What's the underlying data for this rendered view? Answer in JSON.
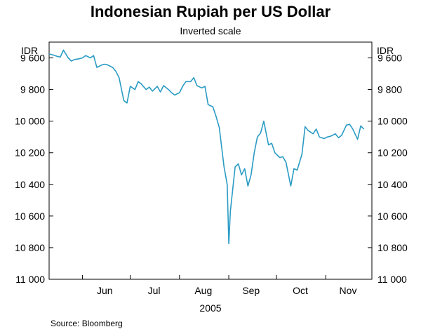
{
  "chart_data": {
    "type": "line",
    "title": "Indonesian Rupiah per US Dollar",
    "subtitle": "Inverted scale",
    "ylabel_left": "IDR",
    "ylabel_right": "IDR",
    "y_inverted": true,
    "ylim": [
      9500,
      11000
    ],
    "y_ticks": [
      9600,
      9800,
      10000,
      10200,
      10400,
      10600,
      10800,
      11000
    ],
    "y_tick_labels": [
      "9 600",
      "9 800",
      "10 000",
      "10 200",
      "10 400",
      "10 600",
      "10 800",
      "11 000"
    ],
    "x_axis_range": [
      "2005-05-11",
      "2005-11-30"
    ],
    "x_month_labels": [
      "Jun",
      "Jul",
      "Aug",
      "Sep",
      "Oct",
      "Nov"
    ],
    "x_year_label": "2005",
    "grid": false,
    "source": "Source: Bloomberg",
    "series": [
      {
        "color": "#2a9bc4",
        "points": [
          [
            "2005-05-11",
            9575
          ],
          [
            "2005-05-13",
            9580
          ],
          [
            "2005-05-16",
            9590
          ],
          [
            "2005-05-18",
            9595
          ],
          [
            "2005-05-20",
            9550
          ],
          [
            "2005-05-23",
            9600
          ],
          [
            "2005-05-25",
            9620
          ],
          [
            "2005-05-27",
            9610
          ],
          [
            "2005-05-30",
            9605
          ],
          [
            "2005-06-01",
            9600
          ],
          [
            "2005-06-03",
            9585
          ],
          [
            "2005-06-06",
            9600
          ],
          [
            "2005-06-08",
            9585
          ],
          [
            "2005-06-10",
            9660
          ],
          [
            "2005-06-13",
            9645
          ],
          [
            "2005-06-15",
            9640
          ],
          [
            "2005-06-17",
            9645
          ],
          [
            "2005-06-20",
            9660
          ],
          [
            "2005-06-22",
            9685
          ],
          [
            "2005-06-24",
            9725
          ],
          [
            "2005-06-27",
            9870
          ],
          [
            "2005-06-29",
            9885
          ],
          [
            "2005-07-01",
            9780
          ],
          [
            "2005-07-04",
            9800
          ],
          [
            "2005-07-06",
            9750
          ],
          [
            "2005-07-08",
            9765
          ],
          [
            "2005-07-11",
            9800
          ],
          [
            "2005-07-13",
            9785
          ],
          [
            "2005-07-15",
            9810
          ],
          [
            "2005-07-18",
            9780
          ],
          [
            "2005-07-20",
            9815
          ],
          [
            "2005-07-22",
            9775
          ],
          [
            "2005-07-25",
            9800
          ],
          [
            "2005-07-27",
            9820
          ],
          [
            "2005-07-29",
            9835
          ],
          [
            "2005-08-01",
            9820
          ],
          [
            "2005-08-03",
            9780
          ],
          [
            "2005-08-05",
            9750
          ],
          [
            "2005-08-08",
            9750
          ],
          [
            "2005-08-10",
            9725
          ],
          [
            "2005-08-12",
            9775
          ],
          [
            "2005-08-15",
            9790
          ],
          [
            "2005-08-17",
            9780
          ],
          [
            "2005-08-19",
            9895
          ],
          [
            "2005-08-22",
            9910
          ],
          [
            "2005-08-24",
            9970
          ],
          [
            "2005-08-26",
            10040
          ],
          [
            "2005-08-29",
            10290
          ],
          [
            "2005-08-31",
            10400
          ],
          [
            "2005-09-01",
            10775
          ],
          [
            "2005-09-02",
            10570
          ],
          [
            "2005-09-05",
            10290
          ],
          [
            "2005-09-07",
            10270
          ],
          [
            "2005-09-09",
            10340
          ],
          [
            "2005-09-11",
            10300
          ],
          [
            "2005-09-13",
            10410
          ],
          [
            "2005-09-15",
            10340
          ],
          [
            "2005-09-17",
            10200
          ],
          [
            "2005-09-19",
            10100
          ],
          [
            "2005-09-21",
            10075
          ],
          [
            "2005-09-23",
            10000
          ],
          [
            "2005-09-26",
            10150
          ],
          [
            "2005-09-28",
            10140
          ],
          [
            "2005-09-30",
            10200
          ],
          [
            "2005-10-03",
            10230
          ],
          [
            "2005-10-05",
            10225
          ],
          [
            "2005-10-07",
            10260
          ],
          [
            "2005-10-10",
            10410
          ],
          [
            "2005-10-12",
            10300
          ],
          [
            "2005-10-14",
            10310
          ],
          [
            "2005-10-17",
            10210
          ],
          [
            "2005-10-19",
            10035
          ],
          [
            "2005-10-21",
            10060
          ],
          [
            "2005-10-24",
            10080
          ],
          [
            "2005-10-26",
            10050
          ],
          [
            "2005-10-28",
            10100
          ],
          [
            "2005-10-31",
            10110
          ],
          [
            "2005-11-02",
            10100
          ],
          [
            "2005-11-04",
            10095
          ],
          [
            "2005-11-07",
            10080
          ],
          [
            "2005-11-09",
            10105
          ],
          [
            "2005-11-11",
            10090
          ],
          [
            "2005-11-14",
            10025
          ],
          [
            "2005-11-16",
            10020
          ],
          [
            "2005-11-18",
            10050
          ],
          [
            "2005-11-21",
            10115
          ],
          [
            "2005-11-23",
            10030
          ],
          [
            "2005-11-25",
            10050
          ]
        ]
      }
    ]
  }
}
